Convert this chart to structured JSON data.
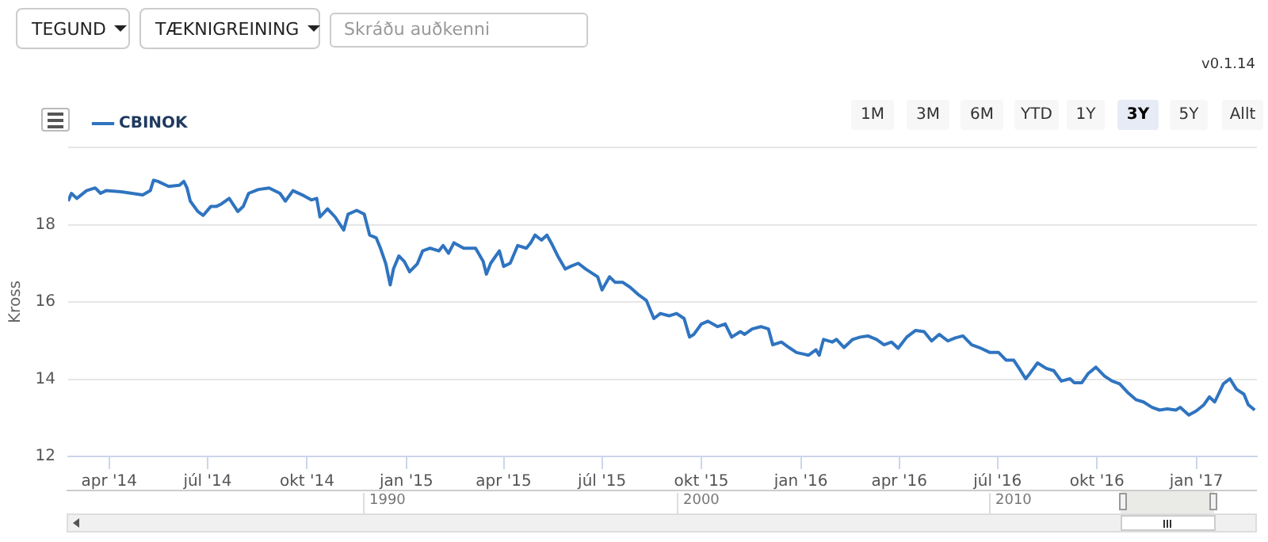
{
  "chart_data": {
    "type": "line",
    "ylabel": "Kross",
    "legend": "top left",
    "grid": "y",
    "marker": "none",
    "line_style": "solid",
    "xlim": [
      "2014-02-22",
      "2017-02-26"
    ],
    "xticks": [
      {
        "value": "2014-04-01",
        "label": "apr '14"
      },
      {
        "value": "2014-07-01",
        "label": "júl '14"
      },
      {
        "value": "2014-10-01",
        "label": "okt '14"
      },
      {
        "value": "2015-01-01",
        "label": "jan '15"
      },
      {
        "value": "2015-04-01",
        "label": "apr '15"
      },
      {
        "value": "2015-07-01",
        "label": "júl '15"
      },
      {
        "value": "2015-10-01",
        "label": "okt '15"
      },
      {
        "value": "2016-01-01",
        "label": "jan '16"
      },
      {
        "value": "2016-04-01",
        "label": "apr '16"
      },
      {
        "value": "2016-07-01",
        "label": "júl '16"
      },
      {
        "value": "2016-10-01",
        "label": "okt '16"
      },
      {
        "value": "2017-01-01",
        "label": "jan '17"
      }
    ],
    "ylim": [
      12,
      20
    ],
    "yticks": [
      12,
      14,
      16,
      18,
      {
        "value": 20,
        "label": null
      }
    ],
    "annotations": [
      "TEGUND",
      "TÆKNIGREINING",
      "Skráðu auðkenni",
      "v0.1.14",
      "1M",
      "3M",
      "6M",
      "YTD",
      "1Y",
      "3Y",
      "5Y",
      "Allt",
      "1990",
      "2000",
      "2010"
    ],
    "series": [
      {
        "name": "CBINOK",
        "color": "#2f74c0",
        "x": [
          "2014-02-22",
          "2014-02-25",
          "2014-03-02",
          "2014-03-11",
          "2014-03-19",
          "2014-03-24",
          "2014-03-29",
          "2014-04-12",
          "2014-04-22",
          "2014-05-02",
          "2014-05-09",
          "2014-05-12",
          "2014-05-16",
          "2014-05-26",
          "2014-06-05",
          "2014-06-09",
          "2014-06-12",
          "2014-06-15",
          "2014-06-22",
          "2014-06-27",
          "2014-07-04",
          "2014-07-09",
          "2014-07-14",
          "2014-07-21",
          "2014-07-29",
          "2014-08-03",
          "2014-08-08",
          "2014-08-17",
          "2014-08-27",
          "2014-09-06",
          "2014-09-11",
          "2014-09-18",
          "2014-09-28",
          "2014-10-05",
          "2014-10-10",
          "2014-10-13",
          "2014-10-20",
          "2014-10-27",
          "2014-11-04",
          "2014-11-08",
          "2014-11-16",
          "2014-11-23",
          "2014-11-28",
          "2014-12-04",
          "2014-12-08",
          "2014-12-13",
          "2014-12-17",
          "2014-12-20",
          "2014-12-25",
          "2014-12-30",
          "2015-01-04",
          "2015-01-11",
          "2015-01-16",
          "2015-01-23",
          "2015-01-31",
          "2015-02-04",
          "2015-02-09",
          "2015-02-14",
          "2015-02-23",
          "2015-03-06",
          "2015-03-13",
          "2015-03-16",
          "2015-03-20",
          "2015-03-28",
          "2015-04-01",
          "2015-04-07",
          "2015-04-14",
          "2015-04-22",
          "2015-04-26",
          "2015-04-30",
          "2015-05-06",
          "2015-05-11",
          "2015-05-15",
          "2015-05-21",
          "2015-05-28",
          "2015-06-02",
          "2015-06-09",
          "2015-06-16",
          "2015-06-27",
          "2015-07-01",
          "2015-07-08",
          "2015-07-13",
          "2015-07-20",
          "2015-07-27",
          "2015-08-04",
          "2015-08-11",
          "2015-08-18",
          "2015-08-24",
          "2015-09-01",
          "2015-09-08",
          "2015-09-15",
          "2015-09-20",
          "2015-09-24",
          "2015-10-01",
          "2015-10-07",
          "2015-10-16",
          "2015-10-23",
          "2015-10-29",
          "2015-11-06",
          "2015-11-10",
          "2015-11-17",
          "2015-11-25",
          "2015-12-02",
          "2015-12-06",
          "2015-12-14",
          "2015-12-21",
          "2015-12-28",
          "2016-01-08",
          "2016-01-15",
          "2016-01-18",
          "2016-01-22",
          "2016-01-30",
          "2016-02-03",
          "2016-02-10",
          "2016-02-18",
          "2016-02-25",
          "2016-03-03",
          "2016-03-11",
          "2016-03-18",
          "2016-03-25",
          "2016-03-31",
          "2016-04-08",
          "2016-04-16",
          "2016-04-24",
          "2016-05-01",
          "2016-05-08",
          "2016-05-16",
          "2016-05-23",
          "2016-05-30",
          "2016-06-07",
          "2016-06-14",
          "2016-06-24",
          "2016-07-02",
          "2016-07-09",
          "2016-07-16",
          "2016-07-21",
          "2016-07-27",
          "2016-07-31",
          "2016-08-07",
          "2016-08-15",
          "2016-08-22",
          "2016-08-29",
          "2016-09-06",
          "2016-09-10",
          "2016-09-17",
          "2016-09-23",
          "2016-09-30",
          "2016-10-08",
          "2016-10-15",
          "2016-10-22",
          "2016-10-30",
          "2016-11-06",
          "2016-11-13",
          "2016-11-21",
          "2016-11-28",
          "2016-12-05",
          "2016-12-13",
          "2016-12-17",
          "2016-12-25",
          "2017-01-01",
          "2017-01-08",
          "2017-01-13",
          "2017-01-18",
          "2017-01-26",
          "2017-02-01",
          "2017-02-07",
          "2017-02-14",
          "2017-02-18",
          "2017-02-24"
        ],
        "values": [
          18.61,
          18.81,
          18.68,
          18.88,
          18.95,
          18.81,
          18.88,
          18.85,
          18.81,
          18.77,
          18.88,
          19.15,
          19.12,
          18.99,
          19.02,
          19.12,
          18.95,
          18.61,
          18.34,
          18.24,
          18.47,
          18.47,
          18.54,
          18.68,
          18.34,
          18.47,
          18.81,
          18.91,
          18.95,
          18.81,
          18.61,
          18.88,
          18.75,
          18.64,
          18.68,
          18.2,
          18.41,
          18.2,
          17.86,
          18.27,
          18.37,
          18.27,
          17.73,
          17.66,
          17.39,
          16.98,
          16.44,
          16.85,
          17.19,
          17.05,
          16.78,
          16.98,
          17.32,
          17.39,
          17.32,
          17.46,
          17.26,
          17.53,
          17.39,
          17.39,
          17.05,
          16.72,
          17.0,
          17.32,
          16.92,
          17.0,
          17.46,
          17.39,
          17.53,
          17.73,
          17.6,
          17.73,
          17.53,
          17.19,
          16.85,
          16.92,
          17.0,
          16.85,
          16.65,
          16.31,
          16.65,
          16.51,
          16.51,
          16.38,
          16.18,
          16.04,
          15.57,
          15.7,
          15.64,
          15.7,
          15.57,
          15.09,
          15.16,
          15.43,
          15.5,
          15.36,
          15.43,
          15.09,
          15.23,
          15.16,
          15.3,
          15.36,
          15.3,
          14.89,
          14.96,
          14.82,
          14.69,
          14.62,
          14.76,
          14.62,
          15.03,
          14.96,
          15.03,
          14.82,
          15.03,
          15.09,
          15.12,
          15.03,
          14.89,
          14.96,
          14.8,
          15.09,
          15.26,
          15.23,
          14.99,
          15.16,
          14.99,
          15.07,
          15.12,
          14.89,
          14.82,
          14.69,
          14.69,
          14.49,
          14.49,
          14.28,
          14.01,
          14.15,
          14.42,
          14.28,
          14.22,
          13.95,
          14.01,
          13.91,
          13.91,
          14.15,
          14.31,
          14.08,
          13.95,
          13.88,
          13.64,
          13.47,
          13.41,
          13.27,
          13.2,
          13.23,
          13.2,
          13.27,
          13.07,
          13.18,
          13.34,
          13.54,
          13.41,
          13.88,
          14.01,
          13.74,
          13.61,
          13.34,
          13.2
        ]
      }
    ]
  }
}
